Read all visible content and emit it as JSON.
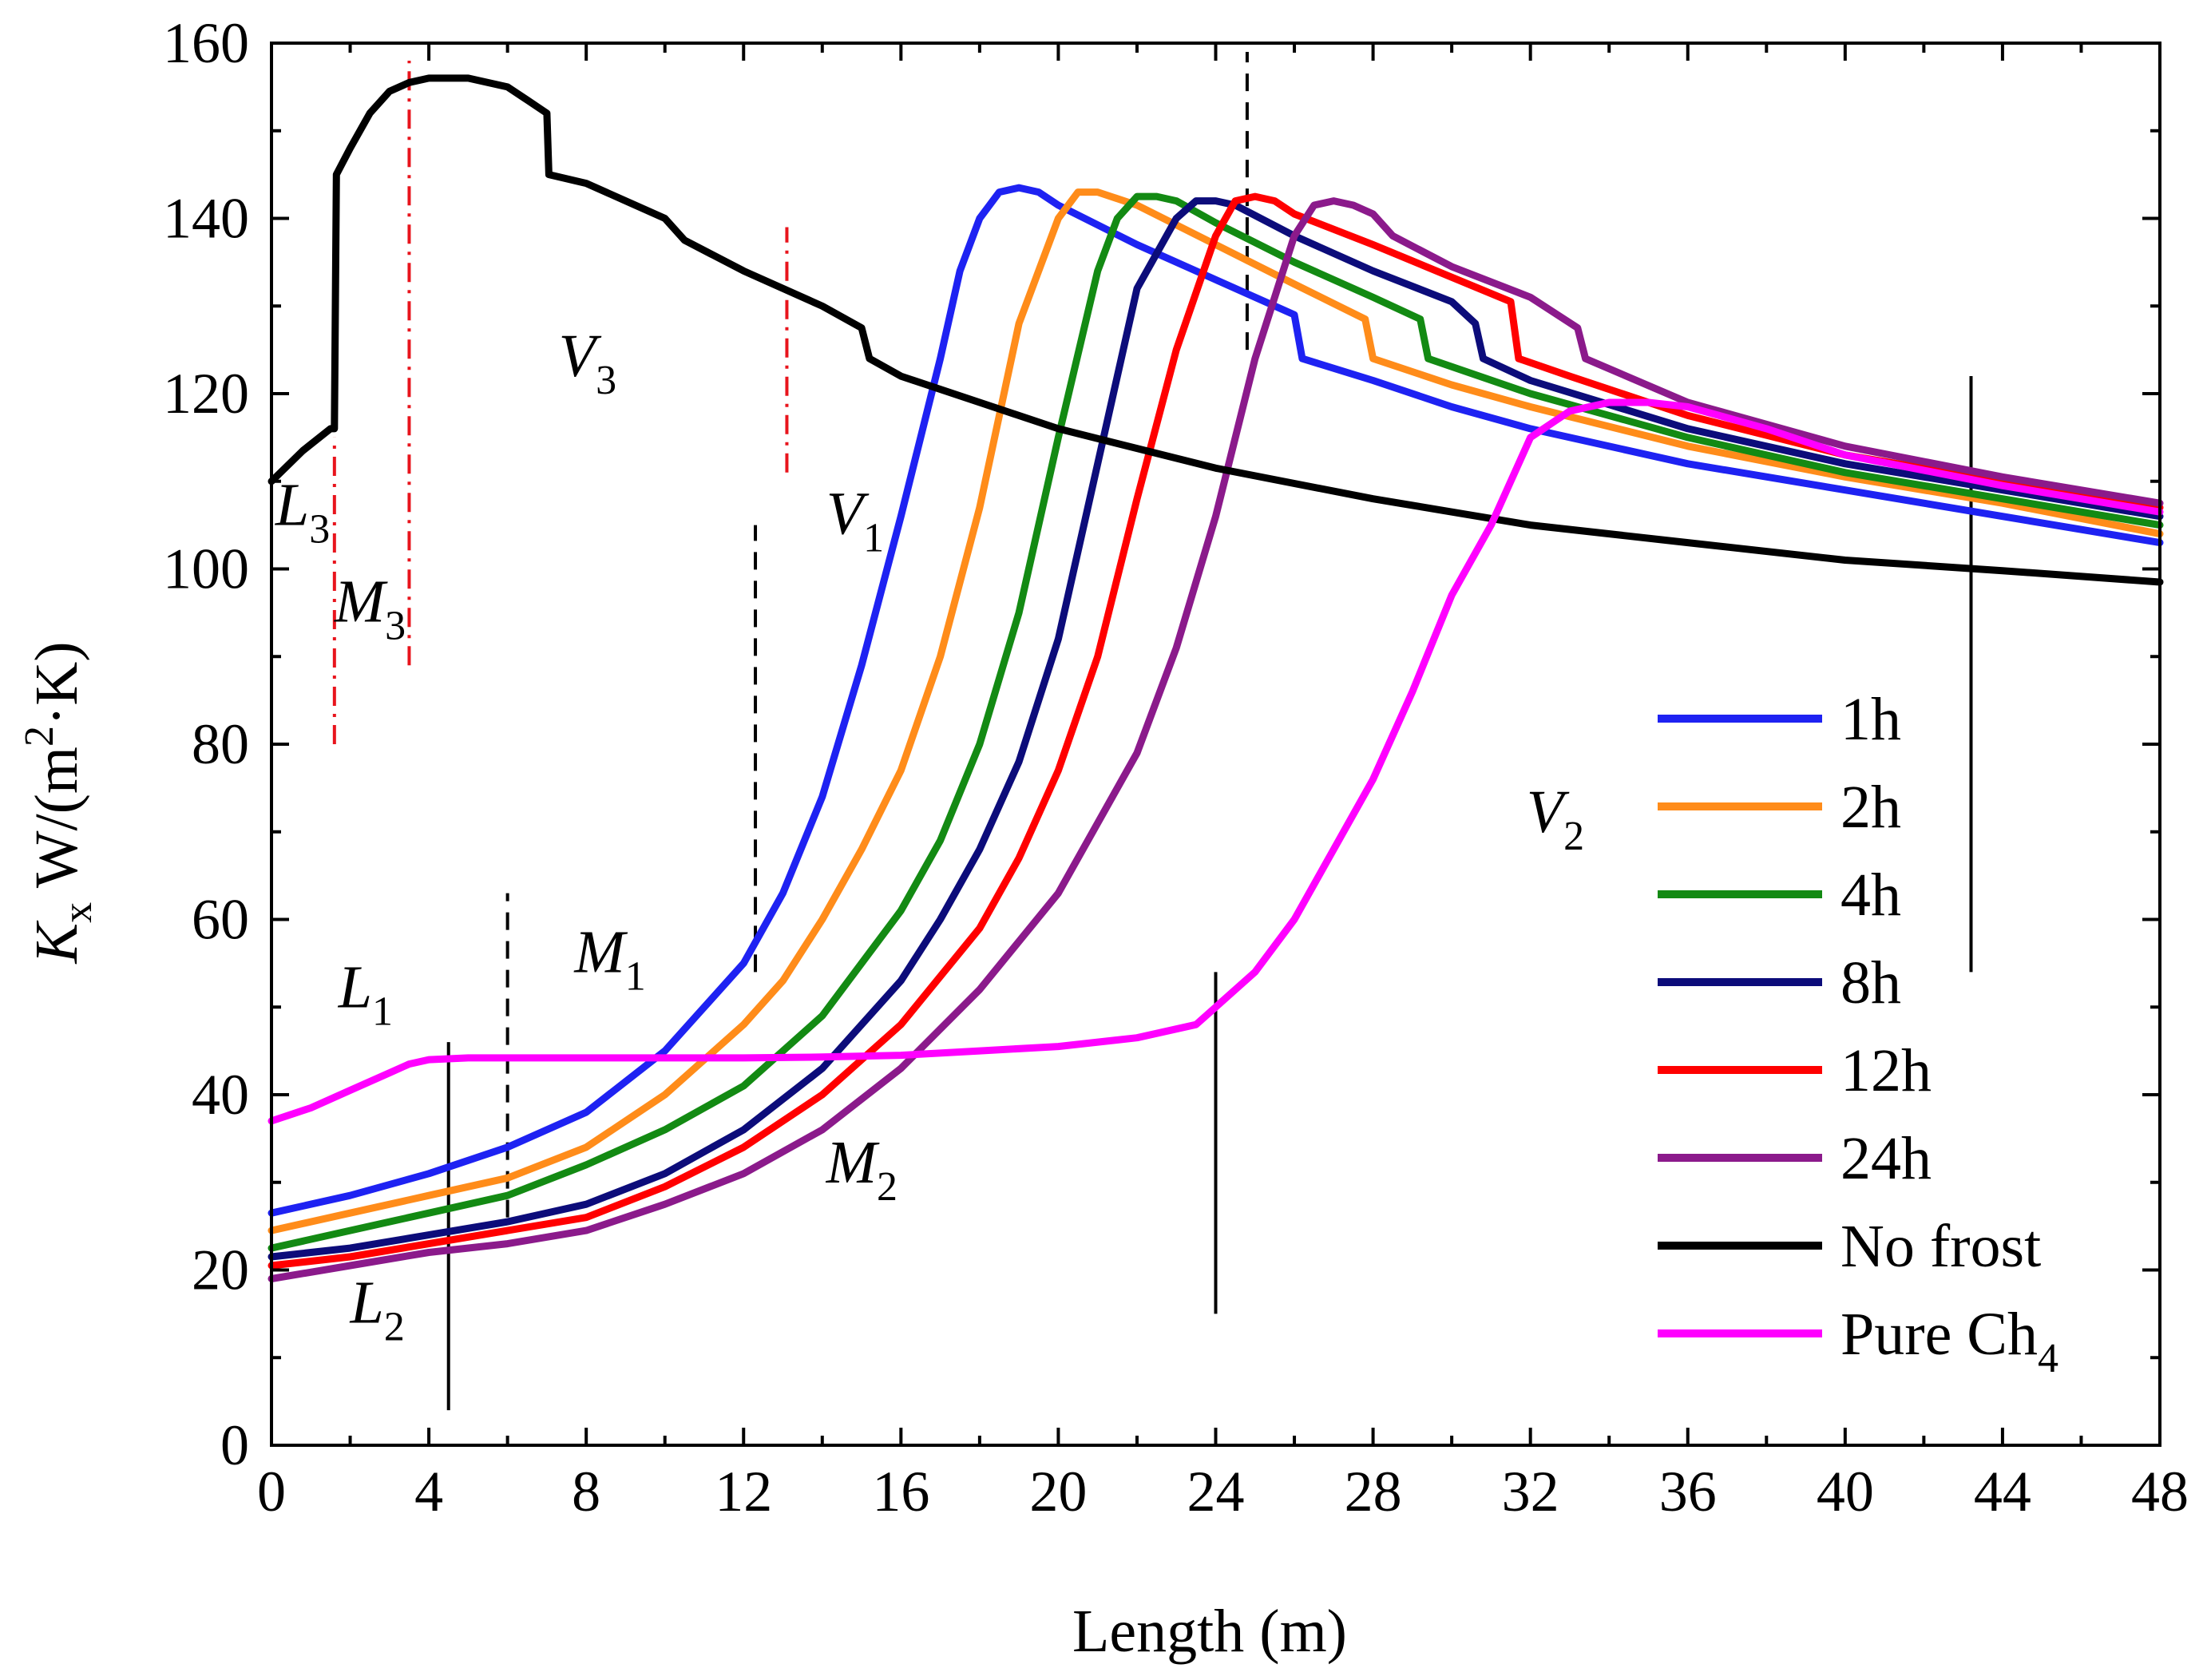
{
  "chart_data": {
    "type": "line",
    "title": "",
    "xlabel": "Length (m)",
    "ylabel": {
      "k": "K",
      "sub": "x",
      "unit_pre": " W/(m",
      "sup": "2",
      "unit_post": "·K)"
    },
    "xlim": [
      0,
      48
    ],
    "ylim": [
      0,
      160
    ],
    "xticks": [
      0,
      4,
      8,
      12,
      16,
      20,
      24,
      28,
      32,
      36,
      40,
      44,
      48
    ],
    "yticks": [
      0,
      20,
      40,
      60,
      80,
      100,
      120,
      140,
      160
    ],
    "grid": false,
    "legend_position": "right",
    "series": [
      {
        "name": "1h",
        "color": "#1e22f2",
        "x": [
          0,
          2,
          4,
          6,
          8,
          10,
          12,
          13,
          14,
          15,
          16,
          17,
          17.5,
          18,
          18.5,
          19,
          19.5,
          20,
          22,
          24,
          26,
          26.2,
          28,
          30,
          32,
          36,
          40,
          44,
          48
        ],
        "y": [
          26.5,
          28.5,
          31,
          34,
          38,
          45,
          55,
          63,
          74,
          89,
          106,
          124,
          134,
          140,
          143,
          143.5,
          143,
          141.5,
          137,
          133,
          129,
          124,
          121.5,
          118.5,
          116,
          112,
          109,
          106,
          103
        ]
      },
      {
        "name": "2h",
        "color": "#ff8c1a",
        "x": [
          0,
          2,
          4,
          6,
          8,
          10,
          12,
          13,
          14,
          15,
          16,
          17,
          18,
          19,
          20,
          20.5,
          21,
          22,
          24,
          26,
          27.8,
          28,
          30,
          32,
          36,
          40,
          44,
          48
        ],
        "y": [
          24.5,
          26.5,
          28.5,
          30.5,
          34,
          40,
          48,
          53,
          60,
          68,
          77,
          90,
          107,
          128,
          140,
          143,
          143,
          141.5,
          137,
          132.5,
          128.5,
          124,
          121,
          118.5,
          114,
          110.5,
          107.5,
          104
        ]
      },
      {
        "name": "4h",
        "color": "#138a13",
        "x": [
          0,
          2,
          4,
          6,
          8,
          10,
          12,
          14,
          16,
          17,
          18,
          19,
          20,
          21,
          21.5,
          22,
          22.5,
          23,
          24,
          26,
          28,
          29.2,
          29.4,
          32,
          36,
          40,
          44,
          48
        ],
        "y": [
          22.5,
          24.5,
          26.5,
          28.5,
          32,
          36,
          41,
          49,
          61,
          69,
          80,
          95,
          115,
          134,
          140,
          142.5,
          142.5,
          142,
          139.5,
          135,
          131,
          128.5,
          124,
          120,
          115,
          111,
          108,
          105
        ]
      },
      {
        "name": "8h",
        "color": "#0c0c7a",
        "x": [
          0,
          2,
          4,
          6,
          8,
          10,
          12,
          14,
          16,
          17,
          18,
          19,
          20,
          21,
          22,
          23,
          23.5,
          24,
          24.5,
          26,
          28,
          30,
          30.6,
          30.8,
          32,
          36,
          40,
          44,
          48
        ],
        "y": [
          21.5,
          22.5,
          24,
          25.5,
          27.5,
          31,
          36,
          43,
          53,
          60,
          68,
          78,
          92,
          112,
          132,
          140,
          142,
          142,
          141.5,
          138,
          134,
          130.5,
          128,
          124,
          121.5,
          116,
          112,
          109,
          106
        ]
      },
      {
        "name": "12h",
        "color": "#ff0000",
        "x": [
          0,
          2,
          4,
          6,
          8,
          10,
          12,
          14,
          16,
          18,
          19,
          20,
          21,
          22,
          23,
          24,
          24.5,
          25,
          25.5,
          26,
          28,
          31.5,
          31.7,
          33,
          36,
          40,
          44,
          48
        ],
        "y": [
          20.5,
          21.5,
          23,
          24.5,
          26,
          29.5,
          34,
          40,
          48,
          59,
          67,
          77,
          90,
          108,
          125,
          138,
          142,
          142.5,
          142,
          140.5,
          137,
          130.5,
          124,
          122,
          117.5,
          113,
          110,
          107
        ]
      },
      {
        "name": "24h",
        "color": "#8b1a8b",
        "x": [
          0,
          2,
          4,
          6,
          8,
          10,
          12,
          14,
          16,
          18,
          20,
          22,
          23,
          24,
          25,
          26,
          26.5,
          27,
          27.5,
          28,
          28.5,
          30,
          32,
          33.2,
          33.4,
          36,
          40,
          44,
          48
        ],
        "y": [
          19,
          20.5,
          22,
          23,
          24.5,
          27.5,
          31,
          36,
          43,
          52,
          63,
          79,
          91,
          106,
          124,
          138,
          141.5,
          142,
          141.5,
          140.5,
          138,
          134.5,
          131,
          127.5,
          124,
          119,
          114,
          110.5,
          107.5
        ]
      },
      {
        "name": "No frost",
        "color": "#000000",
        "x": [
          0,
          0.8,
          1.5,
          1.6,
          1.65,
          2,
          2.5,
          3,
          3.5,
          4,
          5,
          6,
          6.5,
          7,
          7.05,
          8,
          10,
          10.5,
          12,
          14,
          15,
          15.2,
          16,
          18,
          20,
          24,
          28,
          32,
          36,
          40,
          44,
          48
        ],
        "y": [
          110,
          113.5,
          116,
          116,
          145,
          148,
          152,
          154.5,
          155.5,
          156,
          156,
          155,
          153.5,
          152,
          145,
          144,
          140,
          137.5,
          134,
          130,
          127.5,
          124,
          122,
          119,
          116,
          111.5,
          108,
          105,
          103,
          101,
          99.8,
          98.5
        ]
      },
      {
        "name": "Pure Ch4",
        "color": "#ff00ff",
        "x": [
          0,
          1,
          2,
          3,
          3.5,
          4,
          5,
          6,
          8,
          10,
          12,
          14,
          16,
          18,
          20,
          22,
          23.5,
          24,
          25,
          26,
          27,
          28,
          29,
          30,
          31,
          31.5,
          32,
          33,
          34,
          35,
          36,
          38,
          40,
          44,
          48
        ],
        "y": [
          37,
          38.5,
          40.5,
          42.5,
          43.5,
          44,
          44.2,
          44.2,
          44.2,
          44.2,
          44.2,
          44.3,
          44.5,
          45,
          45.5,
          46.5,
          48,
          50,
          54,
          60,
          68,
          76,
          86,
          97,
          105,
          110,
          115,
          118,
          119,
          119,
          118.5,
          116,
          113,
          109.5,
          106.5
        ]
      }
    ],
    "legend_labels": [
      {
        "name": "1h",
        "text": "1h",
        "sub": ""
      },
      {
        "name": "2h",
        "text": "2h",
        "sub": ""
      },
      {
        "name": "4h",
        "text": "4h",
        "sub": ""
      },
      {
        "name": "8h",
        "text": "8h",
        "sub": ""
      },
      {
        "name": "12h",
        "text": "12h",
        "sub": ""
      },
      {
        "name": "24h",
        "text": "24h",
        "sub": ""
      },
      {
        "name": "No frost",
        "text": "No frost",
        "sub": ""
      },
      {
        "name": "Pure Ch4",
        "text": "Pure Ch",
        "sub": "4"
      }
    ],
    "annotations": [
      {
        "main": "L",
        "sub": "3",
        "x": 0.1,
        "y": 105
      },
      {
        "main": "M",
        "sub": "3",
        "x": 1.6,
        "y": 94
      },
      {
        "main": "V",
        "sub": "3",
        "x": 7.3,
        "y": 122
      },
      {
        "main": "V",
        "sub": "1",
        "x": 14.1,
        "y": 104
      },
      {
        "main": "L",
        "sub": "1",
        "x": 1.7,
        "y": 50
      },
      {
        "main": "M",
        "sub": "1",
        "x": 7.7,
        "y": 54
      },
      {
        "main": "M",
        "sub": "2",
        "x": 14.1,
        "y": 30
      },
      {
        "main": "L",
        "sub": "2",
        "x": 2.0,
        "y": 14
      },
      {
        "main": "V",
        "sub": "2",
        "x": 31.9,
        "y": 70
      }
    ],
    "divider_lines": [
      {
        "style": "dashdot-red",
        "x": 1.6,
        "y1": 80,
        "y2": 115
      },
      {
        "style": "dashdot-red",
        "x": 3.5,
        "y1": 89,
        "y2": 158
      },
      {
        "style": "dashdot-red",
        "x": 13.1,
        "y1": 111,
        "y2": 139
      },
      {
        "style": "dashed-black",
        "x": 12.3,
        "y1": 54,
        "y2": 105
      },
      {
        "style": "dashed-black",
        "x": 6.0,
        "y1": 26,
        "y2": 63
      },
      {
        "style": "dashed-black",
        "x": 24.8,
        "y1": 125,
        "y2": 159
      },
      {
        "style": "solid-black",
        "x": 4.5,
        "y1": 4,
        "y2": 46
      },
      {
        "style": "solid-black",
        "x": 24.0,
        "y1": 15,
        "y2": 54
      },
      {
        "style": "solid-black",
        "x": 43.2,
        "y1": 54,
        "y2": 122
      }
    ]
  }
}
